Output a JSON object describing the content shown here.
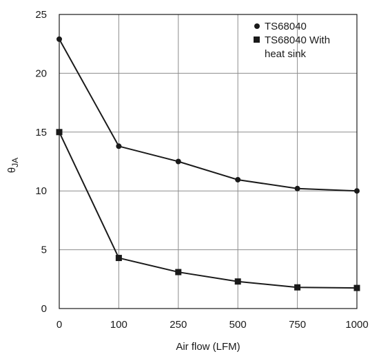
{
  "chart_data": {
    "type": "line",
    "categories": [
      "0",
      "100",
      "250",
      "500",
      "750",
      "1000"
    ],
    "xlabel": "Air flow (LFM)",
    "ylabel_main": "θ",
    "ylabel_sub": "JA",
    "ylim": [
      0,
      25
    ],
    "yticks": [
      "0",
      "5",
      "10",
      "15",
      "20",
      "25"
    ],
    "grid": true,
    "legend_position": "top-right",
    "series": [
      {
        "name": "TS68040",
        "marker": "circle",
        "values": [
          22.9,
          13.8,
          12.5,
          10.95,
          10.2,
          10.0
        ]
      },
      {
        "name_line1": "TS68040 With",
        "name_line2": "heat sink",
        "marker": "square",
        "values": [
          15.0,
          4.3,
          3.1,
          2.3,
          1.8,
          1.75
        ]
      }
    ]
  }
}
